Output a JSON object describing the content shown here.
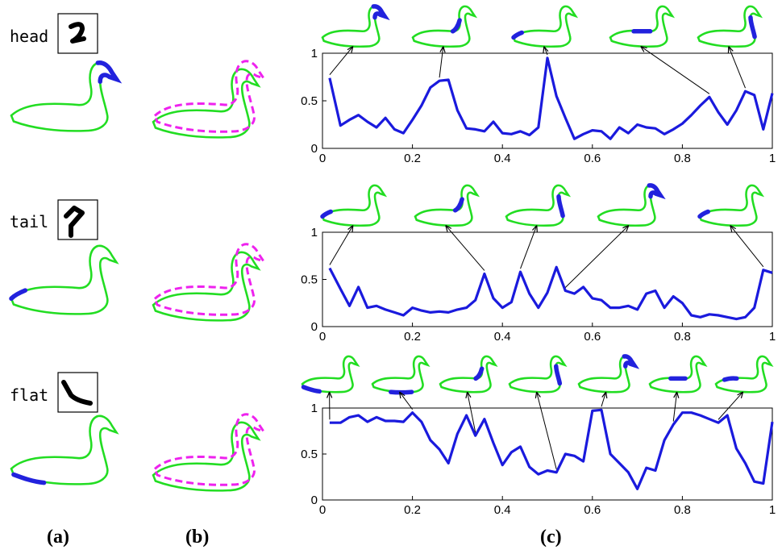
{
  "panel_labels": [
    "(a)",
    "(b)",
    "(c)"
  ],
  "rows": [
    {
      "label": "head",
      "part": "head"
    },
    {
      "label": "tail",
      "part": "tail"
    },
    {
      "label": "flat",
      "part": "flat"
    }
  ],
  "colors": {
    "swan_outline": "#22dd22",
    "highlight": "#2222dd",
    "overlay": "#ee22ee",
    "curve": "#1a1add",
    "axis": "#000000",
    "arrow": "#000000"
  },
  "chart_data": [
    {
      "type": "line",
      "xlim": [
        0,
        1
      ],
      "ylim": [
        0,
        1
      ],
      "xticks": [
        "0",
        "0.2",
        "0.4",
        "0.6",
        "0.8",
        "1"
      ],
      "yticks": [
        "0",
        "0.5",
        "1"
      ],
      "x": [
        0.016,
        0.04,
        0.06,
        0.08,
        0.1,
        0.12,
        0.14,
        0.16,
        0.18,
        0.2,
        0.22,
        0.24,
        0.26,
        0.28,
        0.3,
        0.32,
        0.34,
        0.36,
        0.38,
        0.4,
        0.42,
        0.44,
        0.46,
        0.48,
        0.5,
        0.52,
        0.54,
        0.56,
        0.58,
        0.6,
        0.62,
        0.64,
        0.66,
        0.68,
        0.7,
        0.72,
        0.74,
        0.76,
        0.78,
        0.8,
        0.82,
        0.84,
        0.86,
        0.88,
        0.9,
        0.92,
        0.94,
        0.96,
        0.98,
        1.0
      ],
      "series": [
        {
          "values": [
            0.74,
            0.24,
            0.3,
            0.35,
            0.28,
            0.22,
            0.32,
            0.2,
            0.16,
            0.3,
            0.45,
            0.64,
            0.71,
            0.72,
            0.4,
            0.21,
            0.2,
            0.18,
            0.28,
            0.16,
            0.15,
            0.18,
            0.14,
            0.22,
            0.95,
            0.55,
            0.32,
            0.1,
            0.15,
            0.19,
            0.18,
            0.1,
            0.22,
            0.16,
            0.25,
            0.22,
            0.21,
            0.15,
            0.2,
            0.26,
            0.35,
            0.45,
            0.54,
            0.38,
            0.25,
            0.4,
            0.6,
            0.56,
            0.2,
            0.58
          ]
        }
      ],
      "thumbnails": [
        {
          "highlight": "head",
          "arrow_to": 0.016
        },
        {
          "highlight": "neck-front",
          "arrow_to": 0.265
        },
        {
          "highlight": "tail",
          "arrow_to": 0.5
        },
        {
          "highlight": "back",
          "arrow_to": 0.86
        },
        {
          "highlight": "neck",
          "arrow_to": 0.95
        }
      ]
    },
    {
      "type": "line",
      "xlim": [
        0,
        1
      ],
      "ylim": [
        0,
        1
      ],
      "xticks": [
        "0",
        "0.2",
        "0.4",
        "0.6",
        "0.8",
        "1"
      ],
      "yticks": [
        "0",
        "0.5",
        "1"
      ],
      "x": [
        0.016,
        0.04,
        0.06,
        0.08,
        0.1,
        0.12,
        0.14,
        0.16,
        0.18,
        0.2,
        0.22,
        0.24,
        0.26,
        0.28,
        0.3,
        0.32,
        0.34,
        0.36,
        0.38,
        0.4,
        0.42,
        0.44,
        0.46,
        0.48,
        0.5,
        0.52,
        0.54,
        0.56,
        0.58,
        0.6,
        0.62,
        0.64,
        0.66,
        0.68,
        0.7,
        0.72,
        0.74,
        0.76,
        0.78,
        0.8,
        0.82,
        0.84,
        0.86,
        0.88,
        0.9,
        0.92,
        0.94,
        0.96,
        0.98,
        1.0
      ],
      "series": [
        {
          "values": [
            0.62,
            0.4,
            0.22,
            0.42,
            0.2,
            0.22,
            0.18,
            0.15,
            0.12,
            0.2,
            0.17,
            0.15,
            0.16,
            0.15,
            0.18,
            0.2,
            0.28,
            0.56,
            0.3,
            0.2,
            0.26,
            0.58,
            0.35,
            0.2,
            0.36,
            0.63,
            0.38,
            0.35,
            0.42,
            0.3,
            0.28,
            0.2,
            0.2,
            0.22,
            0.18,
            0.35,
            0.38,
            0.2,
            0.32,
            0.25,
            0.12,
            0.1,
            0.13,
            0.12,
            0.1,
            0.08,
            0.1,
            0.2,
            0.6,
            0.57
          ]
        }
      ],
      "thumbnails": [
        {
          "highlight": "tail",
          "arrow_to": 0.016
        },
        {
          "highlight": "neck-front",
          "arrow_to": 0.36
        },
        {
          "highlight": "neck",
          "arrow_to": 0.45
        },
        {
          "highlight": "head",
          "arrow_to": 0.54
        },
        {
          "highlight": "tail",
          "arrow_to": 0.98
        }
      ]
    },
    {
      "type": "line",
      "xlim": [
        0,
        1
      ],
      "ylim": [
        0,
        1
      ],
      "xticks": [
        "0",
        "0.2",
        "0.4",
        "0.6",
        "0.8",
        "1"
      ],
      "yticks": [
        "0",
        "0.5",
        "1"
      ],
      "x": [
        0.016,
        0.04,
        0.06,
        0.08,
        0.1,
        0.12,
        0.14,
        0.16,
        0.18,
        0.2,
        0.22,
        0.24,
        0.26,
        0.28,
        0.3,
        0.32,
        0.34,
        0.36,
        0.38,
        0.4,
        0.42,
        0.44,
        0.46,
        0.48,
        0.5,
        0.52,
        0.54,
        0.56,
        0.58,
        0.6,
        0.62,
        0.64,
        0.66,
        0.68,
        0.7,
        0.72,
        0.74,
        0.76,
        0.78,
        0.8,
        0.82,
        0.84,
        0.86,
        0.88,
        0.9,
        0.92,
        0.94,
        0.96,
        0.98,
        1.0
      ],
      "series": [
        {
          "values": [
            0.84,
            0.84,
            0.9,
            0.92,
            0.85,
            0.9,
            0.86,
            0.86,
            0.85,
            0.95,
            0.85,
            0.65,
            0.55,
            0.4,
            0.72,
            0.92,
            0.7,
            0.88,
            0.62,
            0.38,
            0.52,
            0.58,
            0.36,
            0.28,
            0.32,
            0.3,
            0.5,
            0.48,
            0.42,
            0.97,
            0.98,
            0.5,
            0.4,
            0.3,
            0.12,
            0.35,
            0.32,
            0.65,
            0.82,
            0.95,
            0.95,
            0.92,
            0.88,
            0.84,
            0.92,
            0.56,
            0.4,
            0.2,
            0.18,
            0.85
          ]
        }
      ],
      "thumbnails": [
        {
          "highlight": "flat",
          "arrow_to": 0.02
        },
        {
          "highlight": "belly",
          "arrow_to": 0.21
        },
        {
          "highlight": "neck-front",
          "arrow_to": 0.35
        },
        {
          "highlight": "neck",
          "arrow_to": 0.52
        },
        {
          "highlight": "head",
          "arrow_to": 0.62
        },
        {
          "highlight": "back",
          "arrow_to": 0.79
        },
        {
          "highlight": "back-rear",
          "arrow_to": 0.88
        }
      ]
    }
  ]
}
